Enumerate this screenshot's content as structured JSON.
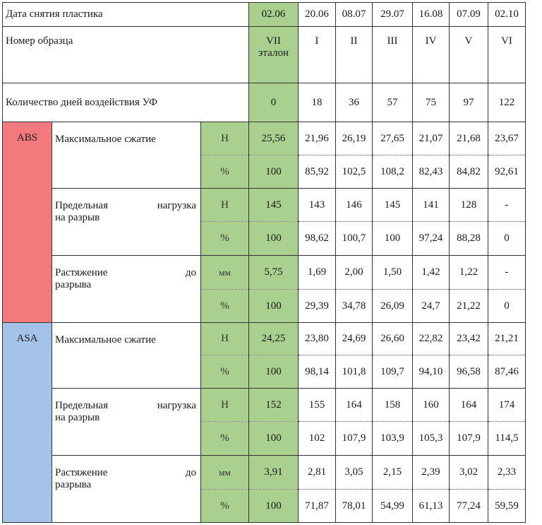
{
  "header": {
    "date_label": "Дата снятия пластика",
    "dates": [
      "02.06",
      "20.06",
      "08.07",
      "29.07",
      "16.08",
      "07.09",
      "02.10"
    ],
    "sample_label": "Номер образца",
    "samples": [
      "VII",
      "I",
      "II",
      "III",
      "IV",
      "V",
      "VI"
    ],
    "reference_label": "эталон",
    "days_label": "Количество дней воздействия УФ",
    "days": [
      "0",
      "18",
      "36",
      "57",
      "75",
      "97",
      "122"
    ]
  },
  "materials": [
    {
      "name": "ABS",
      "color": "#f4797c",
      "properties": [
        {
          "label_words": [
            "Максимальное сжатие"
          ],
          "rows": [
            {
              "unit": "Н",
              "values": [
                "25,56",
                "21,96",
                "26,19",
                "27,65",
                "21,07",
                "21,68",
                "23,67"
              ]
            },
            {
              "unit": "%",
              "values": [
                "100",
                "85,92",
                "102,5",
                "108,2",
                "82,43",
                "84,82",
                "92,61"
              ]
            }
          ]
        },
        {
          "label_words": [
            "Предельная",
            "нагрузка"
          ],
          "label_second": "на разрыв",
          "rows": [
            {
              "unit": "Н",
              "values": [
                "145",
                "143",
                "146",
                "145",
                "141",
                "128",
                "-"
              ]
            },
            {
              "unit": "%",
              "values": [
                "100",
                "98,62",
                "100,7",
                "100",
                "97,24",
                "88,28",
                "0"
              ]
            }
          ]
        },
        {
          "label_words": [
            "Растяжение",
            "до"
          ],
          "label_second": "разрыва",
          "rows": [
            {
              "unit": "мм",
              "values": [
                "5,75",
                "1,69",
                "2,00",
                "1,50",
                "1,42",
                "1,22",
                "-"
              ]
            },
            {
              "unit": "%",
              "values": [
                "100",
                "29,39",
                "34,78",
                "26,09",
                "24,7",
                "21,22",
                "0"
              ]
            }
          ]
        }
      ]
    },
    {
      "name": "ASA",
      "color": "#a4c2e8",
      "properties": [
        {
          "label_words": [
            "Максимальное сжатие"
          ],
          "rows": [
            {
              "unit": "Н",
              "values": [
                "24,25",
                "23,80",
                "24,69",
                "26,60",
                "22,82",
                "23,42",
                "21,21"
              ]
            },
            {
              "unit": "%",
              "values": [
                "100",
                "98,14",
                "101,8",
                "109,7",
                "94,10",
                "96,58",
                "87,46"
              ]
            }
          ]
        },
        {
          "label_words": [
            "Предельная",
            "нагрузка"
          ],
          "label_second": "на разрыв",
          "rows": [
            {
              "unit": "Н",
              "values": [
                "152",
                "155",
                "164",
                "158",
                "160",
                "164",
                "174"
              ]
            },
            {
              "unit": "%",
              "values": [
                "100",
                "102",
                "107,9",
                "103,9",
                "105,3",
                "107,9",
                "114,5"
              ]
            }
          ]
        },
        {
          "label_words": [
            "Растяжение",
            "до"
          ],
          "label_second": "разрыва",
          "rows": [
            {
              "unit": "мм",
              "values": [
                "3,91",
                "2,81",
                "3,05",
                "2,15",
                "2,39",
                "3,02",
                "2,33"
              ]
            },
            {
              "unit": "%",
              "values": [
                "100",
                "71,87",
                "78,01",
                "54,99",
                "61,13",
                "77,24",
                "59,59"
              ]
            }
          ]
        }
      ]
    }
  ],
  "colors": {
    "reference_column": "#a9d08e",
    "abs": "#f4797c",
    "asa": "#a4c2e8"
  }
}
